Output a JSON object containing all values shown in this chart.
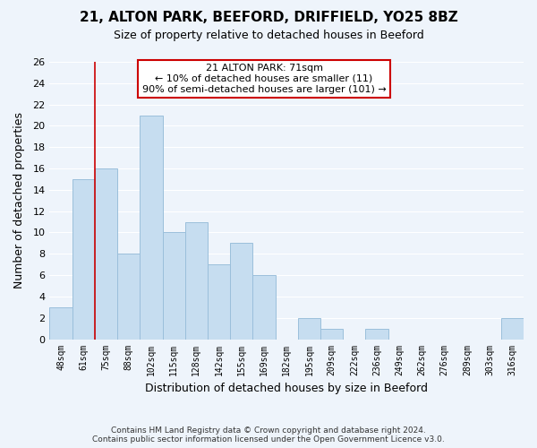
{
  "title": "21, ALTON PARK, BEEFORD, DRIFFIELD, YO25 8BZ",
  "subtitle": "Size of property relative to detached houses in Beeford",
  "xlabel": "Distribution of detached houses by size in Beeford",
  "ylabel": "Number of detached properties",
  "bin_labels": [
    "48sqm",
    "61sqm",
    "75sqm",
    "88sqm",
    "102sqm",
    "115sqm",
    "128sqm",
    "142sqm",
    "155sqm",
    "169sqm",
    "182sqm",
    "195sqm",
    "209sqm",
    "222sqm",
    "236sqm",
    "249sqm",
    "262sqm",
    "276sqm",
    "289sqm",
    "303sqm",
    "316sqm"
  ],
  "bar_heights": [
    3,
    15,
    16,
    8,
    21,
    10,
    11,
    7,
    9,
    6,
    0,
    2,
    1,
    0,
    1,
    0,
    0,
    0,
    0,
    0,
    2
  ],
  "bar_color": "#c6ddf0",
  "bar_edge_color": "#9bbfdb",
  "highlight_line_color": "#cc0000",
  "highlight_line_xindex": 1.5,
  "annotation_title": "21 ALTON PARK: 71sqm",
  "annotation_line1": "← 10% of detached houses are smaller (11)",
  "annotation_line2": "90% of semi-detached houses are larger (101) →",
  "annotation_box_color": "#ffffff",
  "annotation_box_edge": "#cc0000",
  "ylim": [
    0,
    26
  ],
  "yticks": [
    0,
    2,
    4,
    6,
    8,
    10,
    12,
    14,
    16,
    18,
    20,
    22,
    24,
    26
  ],
  "footer_line1": "Contains HM Land Registry data © Crown copyright and database right 2024.",
  "footer_line2": "Contains public sector information licensed under the Open Government Licence v3.0.",
  "background_color": "#eef4fb",
  "grid_color": "#ffffff",
  "title_fontsize": 11,
  "subtitle_fontsize": 9,
  "tick_label_fontsize": 7,
  "axis_label_fontsize": 9,
  "annotation_fontsize": 8,
  "footer_fontsize": 6.5
}
